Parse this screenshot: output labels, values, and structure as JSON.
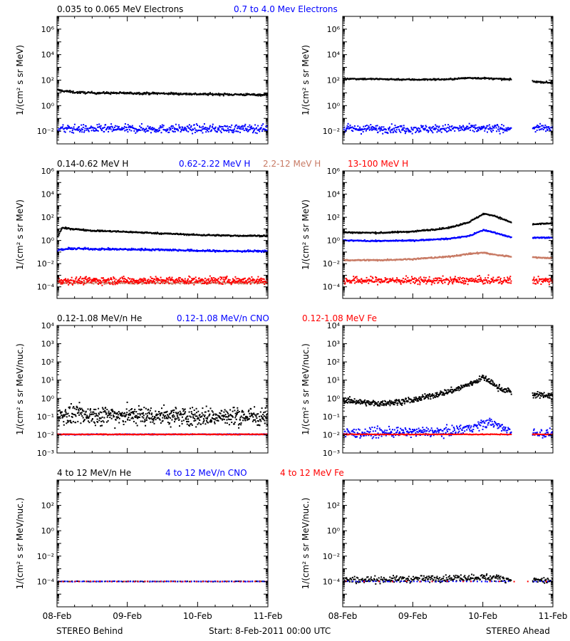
{
  "figure": {
    "footer_left": "STEREO Behind",
    "footer_center": "Start:  8-Feb-2011 00:00 UTC",
    "footer_right": "STEREO Ahead",
    "x_ticks": [
      "08-Feb",
      "09-Feb",
      "10-Feb",
      "11-Feb"
    ]
  },
  "colors": {
    "black": "#000000",
    "blue": "#0000ff",
    "tan": "#c87a64",
    "red": "#ff0000"
  },
  "chart_data": [
    {
      "type": "scatter",
      "panel": "electrons",
      "legend": [
        {
          "label": "0.035 to 0.065 MeV Electrons",
          "color": "#000000"
        },
        {
          "label": "0.7 to 4.0 Mev Electrons",
          "color": "#0000ff"
        }
      ],
      "ylabel": "1/(cm² s sr MeV)",
      "yscale": "log",
      "ylim": [
        0.001,
        10000000
      ],
      "y_tick_exponents": [
        -2,
        0,
        2,
        4,
        6
      ],
      "xlim": [
        0,
        3
      ],
      "x_unit": "days since 08-Feb-2011 00:00 UTC",
      "behind": [
        {
          "name": "0.035 to 0.065 MeV Electrons",
          "color": "#000000",
          "x": [
            0,
            0.25,
            0.5,
            1,
            1.5,
            2,
            2.5,
            3
          ],
          "y": [
            16,
            11,
            10,
            9.5,
            9,
            8,
            7.5,
            7
          ],
          "scatter": 0.08,
          "density": 400
        },
        {
          "name": "0.7 to 4.0 Mev Electrons",
          "color": "#0000ff",
          "x": [
            0,
            1,
            2,
            3
          ],
          "y": [
            0.015,
            0.015,
            0.015,
            0.016
          ],
          "scatter": 0.3,
          "density": 450
        }
      ],
      "ahead": [
        {
          "name": "0.035 to 0.065 MeV Electrons",
          "color": "#000000",
          "x": [
            0,
            0.5,
            1,
            1.5,
            1.8,
            2.0,
            2.4,
            2.62,
            2.7,
            3
          ],
          "y": [
            130,
            120,
            110,
            115,
            150,
            140,
            110,
            null,
            80,
            60
          ],
          "scatter": 0.06,
          "density": 400
        },
        {
          "name": "0.7 to 4.0 Mev Electrons",
          "color": "#0000ff",
          "x": [
            0,
            1,
            2,
            2.4,
            2.62,
            2.7,
            3
          ],
          "y": [
            0.015,
            0.015,
            0.016,
            0.016,
            null,
            0.018,
            0.015
          ],
          "scatter": 0.3,
          "density": 450
        }
      ]
    },
    {
      "type": "scatter",
      "panel": "protons",
      "legend": [
        {
          "label": "0.14-0.62 MeV H",
          "color": "#000000"
        },
        {
          "label": "0.62-2.22 MeV H",
          "color": "#0000ff"
        },
        {
          "label": "2.2-12 MeV H",
          "color": "#c87a64"
        },
        {
          "label": "13-100 MeV H",
          "color": "#ff0000"
        }
      ],
      "ylabel": "1/(cm² s sr MeV)",
      "yscale": "log",
      "ylim": [
        1e-05,
        1000000
      ],
      "y_tick_exponents": [
        -4,
        -2,
        0,
        2,
        4,
        6
      ],
      "xlim": [
        0,
        3
      ],
      "x_unit": "days since 08-Feb-2011 00:00 UTC",
      "behind": [
        {
          "name": "0.14-0.62 MeV H",
          "color": "#000000",
          "x": [
            0,
            0.06,
            0.2,
            0.5,
            1,
            1.5,
            2,
            2.5,
            3
          ],
          "y": [
            2,
            12,
            10,
            7,
            5.5,
            4,
            3,
            2.6,
            2.5
          ],
          "scatter": 0.06,
          "density": 420
        },
        {
          "name": "0.62-2.22 MeV H",
          "color": "#0000ff",
          "x": [
            0,
            0.2,
            0.6,
            1,
            1.5,
            2,
            2.5,
            3
          ],
          "y": [
            0.15,
            0.2,
            0.18,
            0.17,
            0.16,
            0.13,
            0.12,
            0.12
          ],
          "scatter": 0.08,
          "density": 420
        },
        {
          "name": "2.2-12 MeV H",
          "color": "#c87a64",
          "x": [
            0,
            3
          ],
          "y": [
            0.00022,
            0.00022
          ],
          "scatter": 0.1,
          "density": 250
        },
        {
          "name": "13-100 MeV H",
          "color": "#ff0000",
          "x": [
            0,
            3
          ],
          "y": [
            0.00035,
            0.00035
          ],
          "scatter": 0.3,
          "density": 500
        }
      ],
      "ahead": [
        {
          "name": "0.14-0.62 MeV H",
          "color": "#000000",
          "x": [
            0,
            0.5,
            1,
            1.5,
            1.8,
            2.0,
            2.15,
            2.4,
            2.62,
            2.7,
            3
          ],
          "y": [
            5,
            4.5,
            6,
            12,
            40,
            200,
            140,
            35,
            null,
            25,
            30
          ],
          "scatter": 0.06,
          "density": 420
        },
        {
          "name": "0.62-2.22 MeV H",
          "color": "#0000ff",
          "x": [
            0,
            0.5,
            1,
            1.5,
            1.8,
            2.0,
            2.15,
            2.4,
            2.62,
            2.7,
            3
          ],
          "y": [
            1,
            0.9,
            1.0,
            1.4,
            2.5,
            8,
            5,
            1.8,
            null,
            1.7,
            1.8
          ],
          "scatter": 0.05,
          "density": 420
        },
        {
          "name": "2.2-12 MeV H",
          "color": "#c87a64",
          "x": [
            0,
            0.5,
            1,
            1.5,
            1.8,
            2.0,
            2.15,
            2.4,
            2.62,
            2.7,
            3
          ],
          "y": [
            0.02,
            0.02,
            0.025,
            0.04,
            0.07,
            0.09,
            0.06,
            0.04,
            null,
            0.035,
            0.03
          ],
          "scatter": 0.06,
          "density": 420
        },
        {
          "name": "13-100 MeV H",
          "color": "#ff0000",
          "x": [
            0,
            2.4,
            2.62,
            2.7,
            3
          ],
          "y": [
            0.00035,
            0.00035,
            null,
            0.00035,
            0.00035
          ],
          "scatter": 0.3,
          "density": 480
        }
      ]
    },
    {
      "type": "scatter",
      "panel": "heavy-low",
      "legend": [
        {
          "label": "0.12-1.08 MeV/n He",
          "color": "#000000"
        },
        {
          "label": "0.12-1.08 MeV/n CNO",
          "color": "#0000ff"
        },
        {
          "label": "0.12-1.08 MeV Fe",
          "color": "#ff0000"
        }
      ],
      "ylabel": "1/(cm² s sr MeV/nuc.)",
      "yscale": "log",
      "ylim": [
        0.001,
        10000
      ],
      "y_tick_exponents": [
        -3,
        -2,
        -1,
        0,
        1,
        2,
        3,
        4
      ],
      "xlim": [
        0,
        3
      ],
      "x_unit": "days since 08-Feb-2011 00:00 UTC",
      "behind": [
        {
          "name": "0.12-1.08 MeV/n He",
          "color": "#000000",
          "x": [
            0,
            1,
            2,
            3
          ],
          "y": [
            0.12,
            0.12,
            0.1,
            0.1
          ],
          "scatter": 0.5,
          "density": 650
        },
        {
          "name": "0.12-1.08 MeV/n CNO",
          "color": "#0000ff",
          "x": [
            0,
            3
          ],
          "y": [
            0.0105,
            0.0105
          ],
          "scatter": 0.02,
          "density": 300
        },
        {
          "name": "0.12-1.08 MeV Fe",
          "color": "#ff0000",
          "x": [
            0,
            3
          ],
          "y": [
            0.0105,
            0.0105
          ],
          "scatter": 0.02,
          "density": 300
        }
      ],
      "ahead": [
        {
          "name": "0.12-1.08 MeV/n He",
          "color": "#000000",
          "x": [
            0,
            0.5,
            1,
            1.3,
            1.6,
            1.8,
            2.0,
            2.1,
            2.2,
            2.4,
            2.62,
            2.7,
            3
          ],
          "y": [
            0.8,
            0.5,
            0.8,
            1.5,
            3,
            6,
            14,
            8,
            4,
            2.2,
            null,
            1.5,
            1.5
          ],
          "scatter": 0.15,
          "density": 550
        },
        {
          "name": "0.12-1.08 MeV/n CNO",
          "color": "#0000ff",
          "x": [
            0,
            1.5,
            1.9,
            2.1,
            2.3,
            2.4,
            2.62,
            2.7,
            3
          ],
          "y": [
            0.012,
            0.015,
            0.03,
            0.05,
            0.02,
            0.015,
            null,
            0.012,
            0.012
          ],
          "scatter": 0.25,
          "density": 420
        },
        {
          "name": "0.12-1.08 MeV Fe",
          "color": "#ff0000",
          "x": [
            0,
            2.4,
            2.62,
            2.7,
            3
          ],
          "y": [
            0.0105,
            0.0105,
            null,
            0.0105,
            0.0105
          ],
          "scatter": 0.02,
          "density": 250
        }
      ]
    },
    {
      "type": "scatter",
      "panel": "heavy-high",
      "legend": [
        {
          "label": "4 to 12 MeV/n He",
          "color": "#000000"
        },
        {
          "label": "4 to 12 MeV/n CNO",
          "color": "#0000ff"
        },
        {
          "label": "4 to 12 MeV Fe",
          "color": "#ff0000"
        }
      ],
      "ylabel": "1/(cm² s sr MeV/nuc.)",
      "yscale": "log",
      "ylim": [
        1e-06,
        10000
      ],
      "y_tick_exponents": [
        -4,
        -2,
        0,
        2
      ],
      "xlim": [
        0,
        3
      ],
      "x_unit": "days since 08-Feb-2011 00:00 UTC",
      "behind": [
        {
          "name": "4 to 12 MeV/n He",
          "color": "#000000",
          "x": [
            0,
            3
          ],
          "y": [
            0.0001,
            0.0001
          ],
          "scatter": 0.02,
          "density": 90
        },
        {
          "name": "4 to 12 MeV/n CNO",
          "color": "#0000ff",
          "x": [
            0,
            3
          ],
          "y": [
            0.0001,
            0.0001
          ],
          "scatter": 0.02,
          "density": 90
        },
        {
          "name": "4 to 12 MeV Fe",
          "color": "#ff0000",
          "x": [
            0,
            3
          ],
          "y": [
            0.0001,
            0.0001
          ],
          "scatter": 0.02,
          "density": 40
        }
      ],
      "ahead": [
        {
          "name": "4 to 12 MeV/n He",
          "color": "#000000",
          "x": [
            0,
            1,
            1.5,
            2.0,
            2.3,
            2.4,
            2.62,
            2.7,
            3
          ],
          "y": [
            0.00013,
            0.00015,
            0.00018,
            0.00022,
            0.00017,
            0.00013,
            null,
            0.00012,
            0.00012
          ],
          "scatter": 0.25,
          "density": 380
        },
        {
          "name": "4 to 12 MeV/n CNO",
          "color": "#0000ff",
          "x": [
            0,
            2.4,
            2.62,
            2.7,
            3
          ],
          "y": [
            0.0001,
            0.0001,
            null,
            0.0001,
            0.0001
          ],
          "scatter": 0.02,
          "density": 60
        },
        {
          "name": "4 to 12 MeV Fe",
          "color": "#ff0000",
          "x": [
            0,
            3
          ],
          "y": [
            0.0001,
            0.0001
          ],
          "scatter": 0.02,
          "density": 15
        }
      ]
    }
  ]
}
